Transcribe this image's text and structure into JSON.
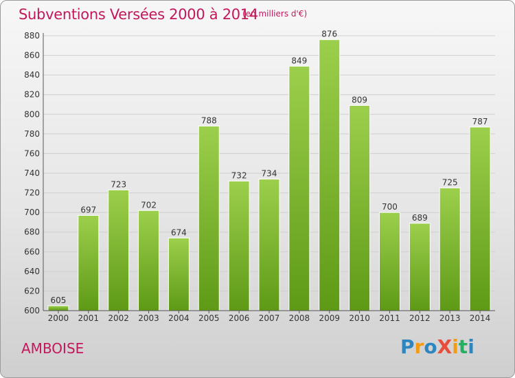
{
  "header": {
    "title": "Subventions Versées 2000 à 2014",
    "unit_note": "(en milliers d'€)"
  },
  "footer": {
    "city": "AMBOISE",
    "logo_text": "ProXiti"
  },
  "colors": {
    "bar_top": "#9ccf4c",
    "bar_bottom": "#5e9a16",
    "title": "#c2185b"
  },
  "chart_data": {
    "type": "bar",
    "categories": [
      "2000",
      "2001",
      "2002",
      "2003",
      "2004",
      "2005",
      "2006",
      "2007",
      "2008",
      "2009",
      "2010",
      "2011",
      "2012",
      "2013",
      "2014"
    ],
    "values": [
      605,
      697,
      723,
      702,
      674,
      788,
      732,
      734,
      849,
      876,
      809,
      700,
      689,
      725,
      787
    ],
    "title": "Subventions Versées 2000 à 2014",
    "xlabel": "",
    "ylabel": "",
    "ylim": [
      600,
      880
    ],
    "yticks": [
      600,
      620,
      640,
      660,
      680,
      700,
      720,
      740,
      760,
      780,
      800,
      820,
      840,
      860,
      880
    ],
    "grid": true,
    "data_labels": true
  }
}
